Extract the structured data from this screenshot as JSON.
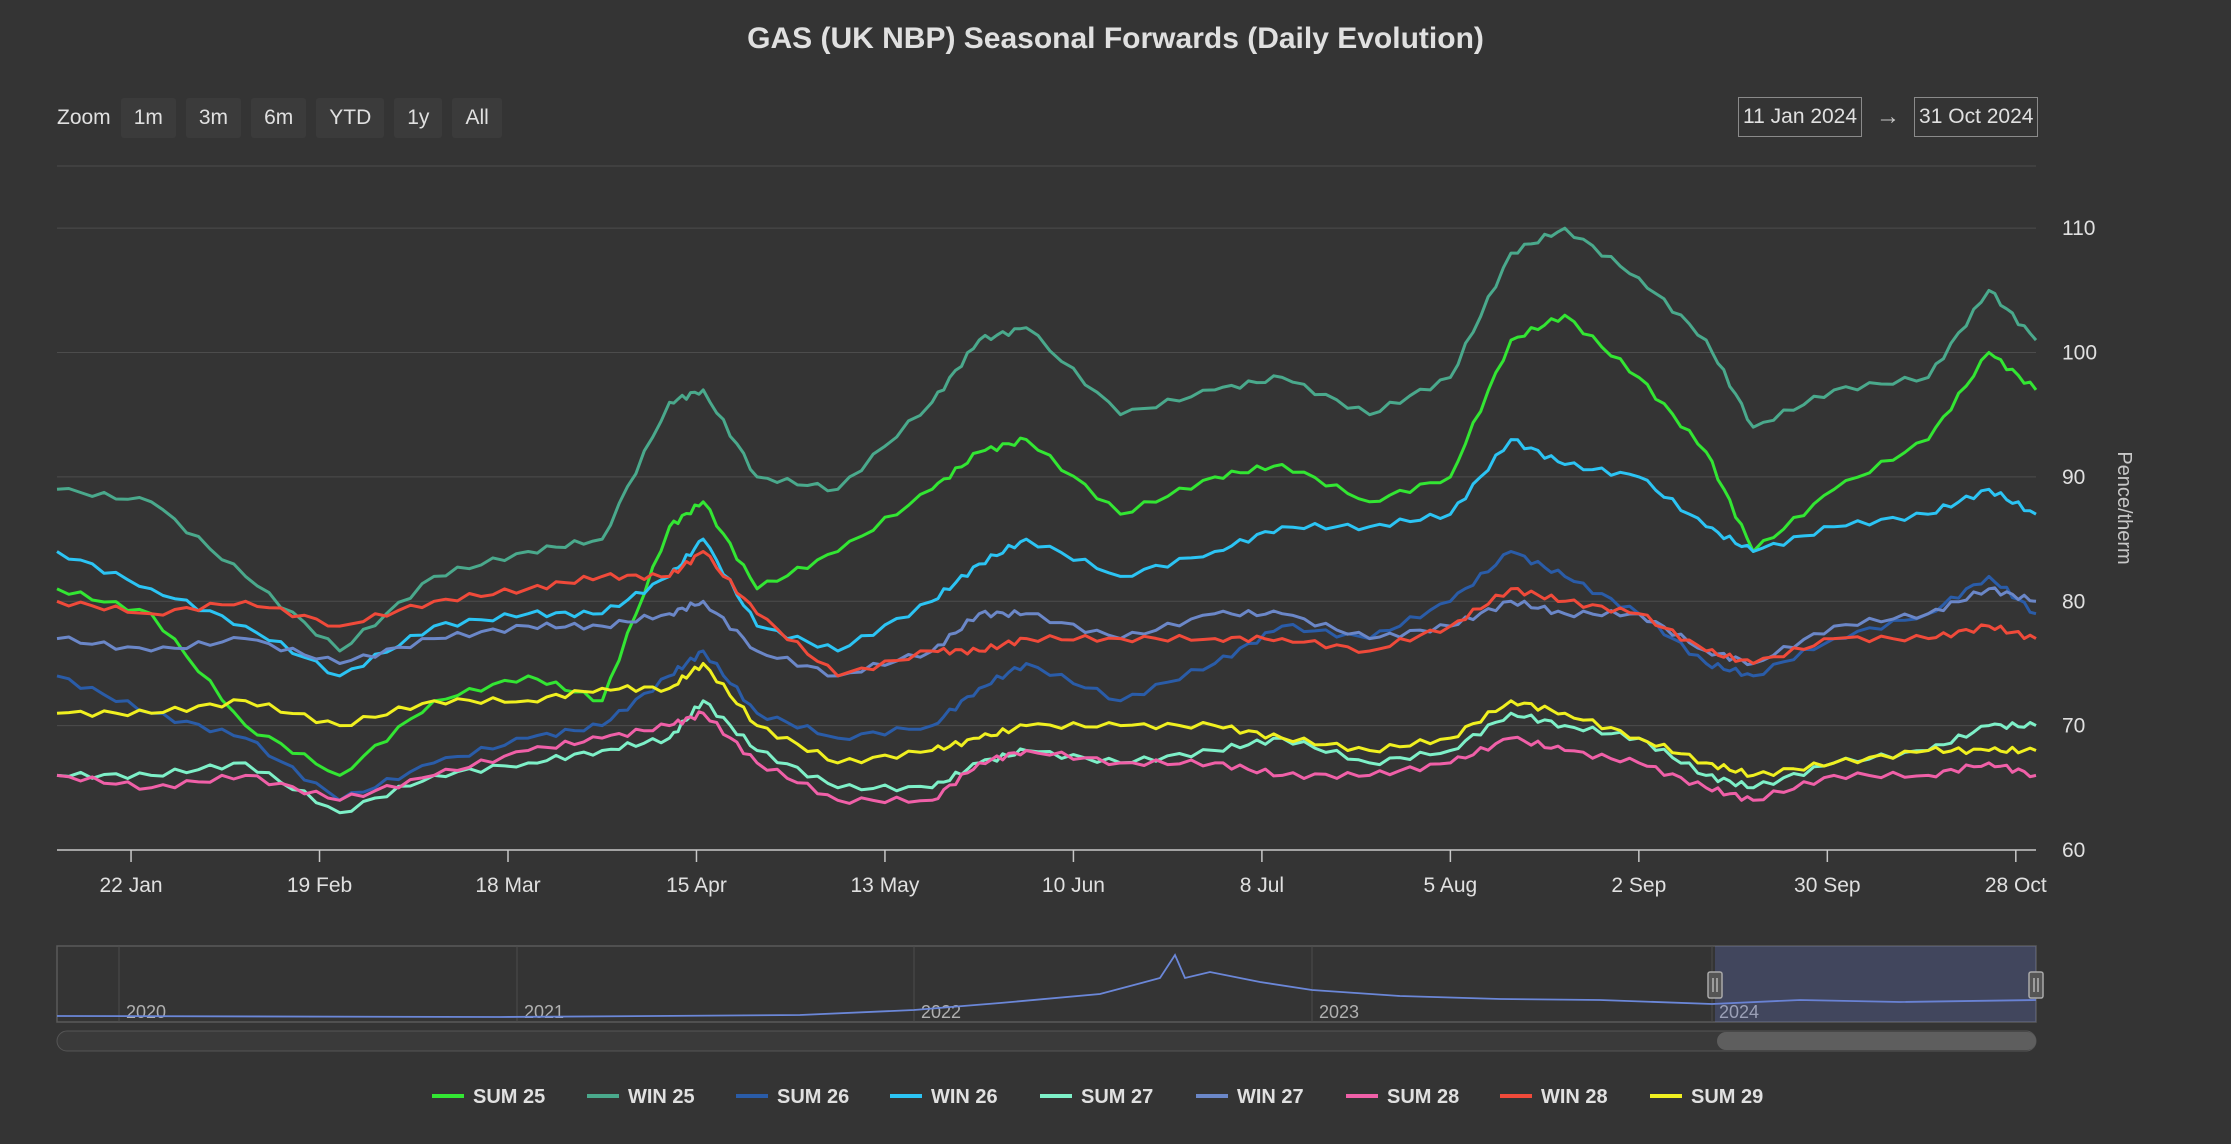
{
  "chart_data": {
    "type": "line",
    "title": "GAS (UK NBP) Seasonal Forwards (Daily Evolution)",
    "ylabel": "Pence/therm",
    "xlabel": "",
    "ylim": [
      60,
      115
    ],
    "y_ticks": [
      60,
      70,
      80,
      90,
      100,
      110
    ],
    "grid": true,
    "legend_position": "bottom",
    "x_start": "2024-01-11",
    "x_end": "2024-10-31",
    "x_ticks": [
      "22 Jan",
      "19 Feb",
      "18 Mar",
      "15 Apr",
      "13 May",
      "10 Jun",
      "8 Jul",
      "5 Aug",
      "2 Sep",
      "30 Sep",
      "28 Oct"
    ],
    "x_tick_dates": [
      "2024-01-22",
      "2024-02-19",
      "2024-03-18",
      "2024-04-15",
      "2024-05-13",
      "2024-06-10",
      "2024-07-08",
      "2024-08-05",
      "2024-09-02",
      "2024-09-30",
      "2024-10-28"
    ],
    "dates": [
      "2024-01-11",
      "2024-01-25",
      "2024-02-08",
      "2024-02-22",
      "2024-03-07",
      "2024-03-21",
      "2024-04-01",
      "2024-04-11",
      "2024-04-16",
      "2024-04-24",
      "2024-05-06",
      "2024-05-20",
      "2024-05-27",
      "2024-06-03",
      "2024-06-17",
      "2024-07-01",
      "2024-07-11",
      "2024-07-24",
      "2024-08-05",
      "2024-08-14",
      "2024-08-22",
      "2024-09-02",
      "2024-09-12",
      "2024-09-19",
      "2024-10-01",
      "2024-10-15",
      "2024-10-24",
      "2024-10-31"
    ],
    "series": [
      {
        "name": "SUM 25",
        "color": "#33e633",
        "values": [
          81,
          79,
          70,
          66,
          72,
          74,
          72,
          86,
          88,
          81,
          84,
          89,
          92,
          93,
          87,
          90,
          91,
          88,
          90,
          101,
          103,
          98,
          92,
          84,
          89,
          93,
          100,
          97
        ]
      },
      {
        "name": "WIN 25",
        "color": "#4aa98c",
        "values": [
          89,
          88,
          82,
          76,
          82,
          84,
          85,
          96,
          97,
          90,
          89,
          96,
          101,
          102,
          95,
          97,
          98,
          95,
          98,
          108,
          110,
          106,
          101,
          94,
          97,
          98,
          105,
          101
        ]
      },
      {
        "name": "SUM 26",
        "color": "#2a5ca8",
        "values": [
          74,
          71,
          69,
          64,
          67,
          69,
          70,
          74,
          76,
          71,
          69,
          70,
          73,
          75,
          72,
          75,
          78,
          77,
          80,
          84,
          82,
          79,
          75,
          74,
          77,
          79,
          82,
          79
        ]
      },
      {
        "name": "WIN 26",
        "color": "#2cc4f4",
        "values": [
          84,
          81,
          78,
          74,
          78,
          79,
          79,
          82,
          85,
          78,
          76,
          80,
          83,
          85,
          82,
          84,
          86,
          86,
          87,
          93,
          91,
          90,
          86,
          84,
          86,
          87,
          89,
          87
        ]
      },
      {
        "name": "SUM 27",
        "color": "#7ef0c8",
        "values": [
          66,
          66,
          67,
          63,
          66,
          67,
          68,
          69,
          72,
          68,
          65,
          65,
          67,
          68,
          67,
          68,
          69,
          67,
          68,
          71,
          70,
          69,
          66,
          65,
          67,
          68,
          70,
          70
        ]
      },
      {
        "name": "WIN 27",
        "color": "#6b87c8",
        "values": [
          77,
          76,
          77,
          75,
          77,
          78,
          78,
          79,
          80,
          76,
          74,
          76,
          79,
          79,
          77,
          79,
          79,
          77,
          78,
          80,
          79,
          79,
          76,
          75,
          78,
          79,
          81,
          80
        ]
      },
      {
        "name": "SUM 28",
        "color": "#f060a8",
        "values": [
          66,
          65,
          66,
          64,
          66,
          68,
          69,
          70,
          71,
          67,
          64,
          64,
          67,
          68,
          67,
          67,
          66,
          66,
          67,
          69,
          68,
          67,
          65,
          64,
          66,
          66,
          67,
          66
        ]
      },
      {
        "name": "WIN 28",
        "color": "#f04a3a",
        "values": [
          80,
          79,
          80,
          78,
          80,
          81,
          82,
          82,
          84,
          79,
          74,
          76,
          76,
          77,
          77,
          77,
          77,
          76,
          78,
          81,
          80,
          79,
          76,
          75,
          77,
          77,
          78,
          77
        ]
      },
      {
        "name": "SUM 29",
        "color": "#f0f020",
        "values": [
          71,
          71,
          72,
          70,
          72,
          72,
          73,
          73,
          75,
          70,
          67,
          68,
          69,
          70,
          70,
          70,
          69,
          68,
          69,
          72,
          71,
          69,
          67,
          66,
          67,
          68,
          68,
          68
        ]
      }
    ],
    "navigator": {
      "years": [
        "2020",
        "2021",
        "2022",
        "2023",
        "2024"
      ]
    }
  },
  "toolbar": {
    "zoom_label": "Zoom",
    "buttons": [
      "1m",
      "3m",
      "6m",
      "YTD",
      "1y",
      "All"
    ],
    "from_date": "11 Jan 2024",
    "to_date": "31 Oct 2024",
    "range_arrow": "→"
  }
}
